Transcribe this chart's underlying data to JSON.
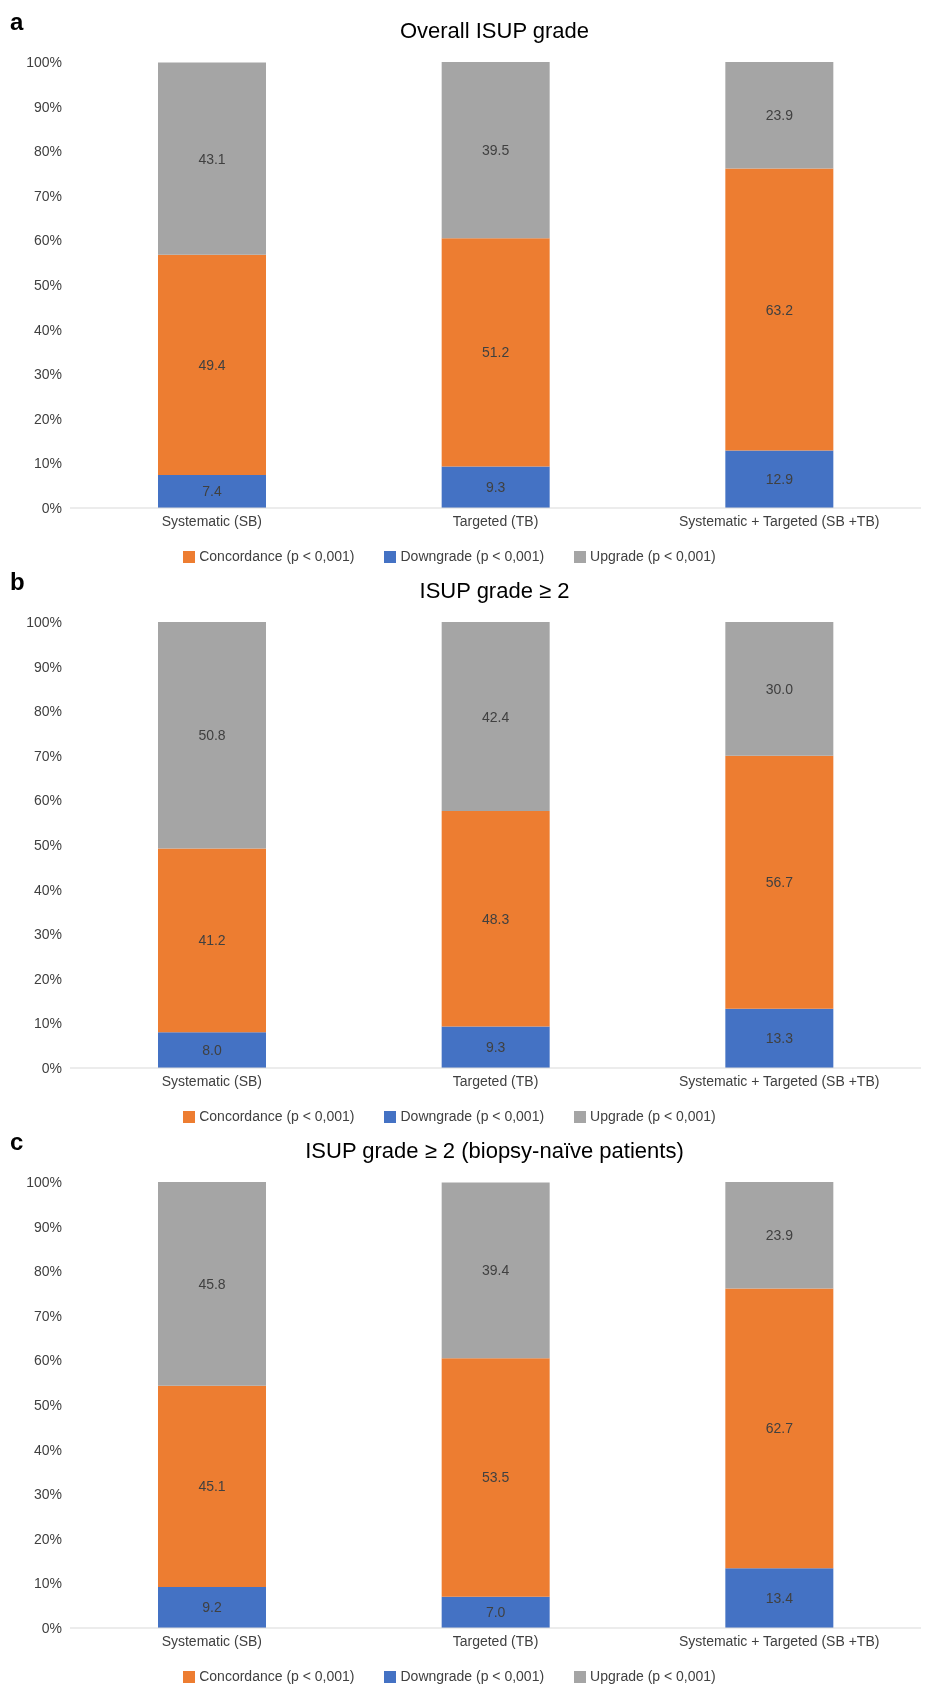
{
  "chart_data": [
    {
      "type": "bar",
      "stacked": true,
      "title": "Overall ISUP grade",
      "annotations": [
        "a"
      ],
      "categories": [
        "Systematic (SB)",
        "Targeted (TB)",
        "Systematic + Targeted (SB +TB)"
      ],
      "series": [
        {
          "name": "Downgrade (p < 0,001)",
          "color": "#4472c4",
          "values": [
            7.4,
            9.3,
            12.9
          ],
          "value_labels": [
            "7.4",
            "9.3",
            "12.9"
          ]
        },
        {
          "name": "Concordance (p < 0,001)",
          "color": "#ed7d31",
          "values": [
            49.4,
            51.2,
            63.2
          ],
          "value_labels": [
            "49.4",
            "51.2",
            "63.2"
          ]
        },
        {
          "name": "Upgrade (p < 0,001)",
          "color": "#a5a5a5",
          "values": [
            43.1,
            39.5,
            23.9
          ],
          "value_labels": [
            "43.1",
            "39.5",
            "23.9"
          ]
        }
      ],
      "ylim": [
        0,
        100
      ],
      "yticks": [
        {
          "value": 0,
          "label": "0%"
        },
        {
          "value": 10,
          "label": "10%"
        },
        {
          "value": 20,
          "label": "20%"
        },
        {
          "value": 30,
          "label": "30%"
        },
        {
          "value": 40,
          "label": "40%"
        },
        {
          "value": 50,
          "label": "50%"
        },
        {
          "value": 60,
          "label": "60%"
        },
        {
          "value": 70,
          "label": "70%"
        },
        {
          "value": 80,
          "label": "80%"
        },
        {
          "value": 90,
          "label": "90%"
        },
        {
          "value": 100,
          "label": "100%"
        }
      ],
      "legend": "bottom"
    },
    {
      "type": "bar",
      "stacked": true,
      "title": "ISUP grade ≥ 2",
      "annotations": [
        "b"
      ],
      "categories": [
        "Systematic (SB)",
        "Targeted (TB)",
        "Systematic + Targeted (SB +TB)"
      ],
      "series": [
        {
          "name": "Downgrade (p < 0,001)",
          "color": "#4472c4",
          "values": [
            8.0,
            9.3,
            13.3
          ],
          "value_labels": [
            "8.0",
            "9.3",
            "13.3"
          ]
        },
        {
          "name": "Concordance (p < 0,001)",
          "color": "#ed7d31",
          "values": [
            41.2,
            48.3,
            56.7
          ],
          "value_labels": [
            "41.2",
            "48.3",
            "56.7"
          ]
        },
        {
          "name": "Upgrade (p < 0,001)",
          "color": "#a5a5a5",
          "values": [
            50.8,
            42.4,
            30.0
          ],
          "value_labels": [
            "50.8",
            "42.4",
            "30.0"
          ]
        }
      ],
      "ylim": [
        0,
        100
      ],
      "yticks": [
        {
          "value": 0,
          "label": "0%"
        },
        {
          "value": 10,
          "label": "10%"
        },
        {
          "value": 20,
          "label": "20%"
        },
        {
          "value": 30,
          "label": "30%"
        },
        {
          "value": 40,
          "label": "40%"
        },
        {
          "value": 50,
          "label": "50%"
        },
        {
          "value": 60,
          "label": "60%"
        },
        {
          "value": 70,
          "label": "70%"
        },
        {
          "value": 80,
          "label": "80%"
        },
        {
          "value": 90,
          "label": "90%"
        },
        {
          "value": 100,
          "label": "100%"
        }
      ],
      "legend": "bottom"
    },
    {
      "type": "bar",
      "stacked": true,
      "title": "ISUP grade ≥ 2 (biopsy-naïve patients)",
      "annotations": [
        "c"
      ],
      "categories": [
        "Systematic (SB)",
        "Targeted (TB)",
        "Systematic + Targeted (SB +TB)"
      ],
      "series": [
        {
          "name": "Downgrade (p < 0,001)",
          "color": "#4472c4",
          "values": [
            9.2,
            7.0,
            13.4
          ],
          "value_labels": [
            "9.2",
            "7.0",
            "13.4"
          ]
        },
        {
          "name": "Concordance (p < 0,001)",
          "color": "#ed7d31",
          "values": [
            45.1,
            53.5,
            62.7
          ],
          "value_labels": [
            "45.1",
            "53.5",
            "62.7"
          ]
        },
        {
          "name": "Upgrade (p < 0,001)",
          "color": "#a5a5a5",
          "values": [
            45.8,
            39.4,
            23.9
          ],
          "value_labels": [
            "45.8",
            "39.4",
            "23.9"
          ]
        }
      ],
      "ylim": [
        0,
        100
      ],
      "yticks": [
        {
          "value": 0,
          "label": "0%"
        },
        {
          "value": 10,
          "label": "10%"
        },
        {
          "value": 20,
          "label": "20%"
        },
        {
          "value": 30,
          "label": "30%"
        },
        {
          "value": 40,
          "label": "40%"
        },
        {
          "value": 50,
          "label": "50%"
        },
        {
          "value": 60,
          "label": "60%"
        },
        {
          "value": 70,
          "label": "70%"
        },
        {
          "value": 80,
          "label": "80%"
        },
        {
          "value": 90,
          "label": "90%"
        },
        {
          "value": 100,
          "label": "100%"
        }
      ],
      "legend": "bottom"
    }
  ]
}
